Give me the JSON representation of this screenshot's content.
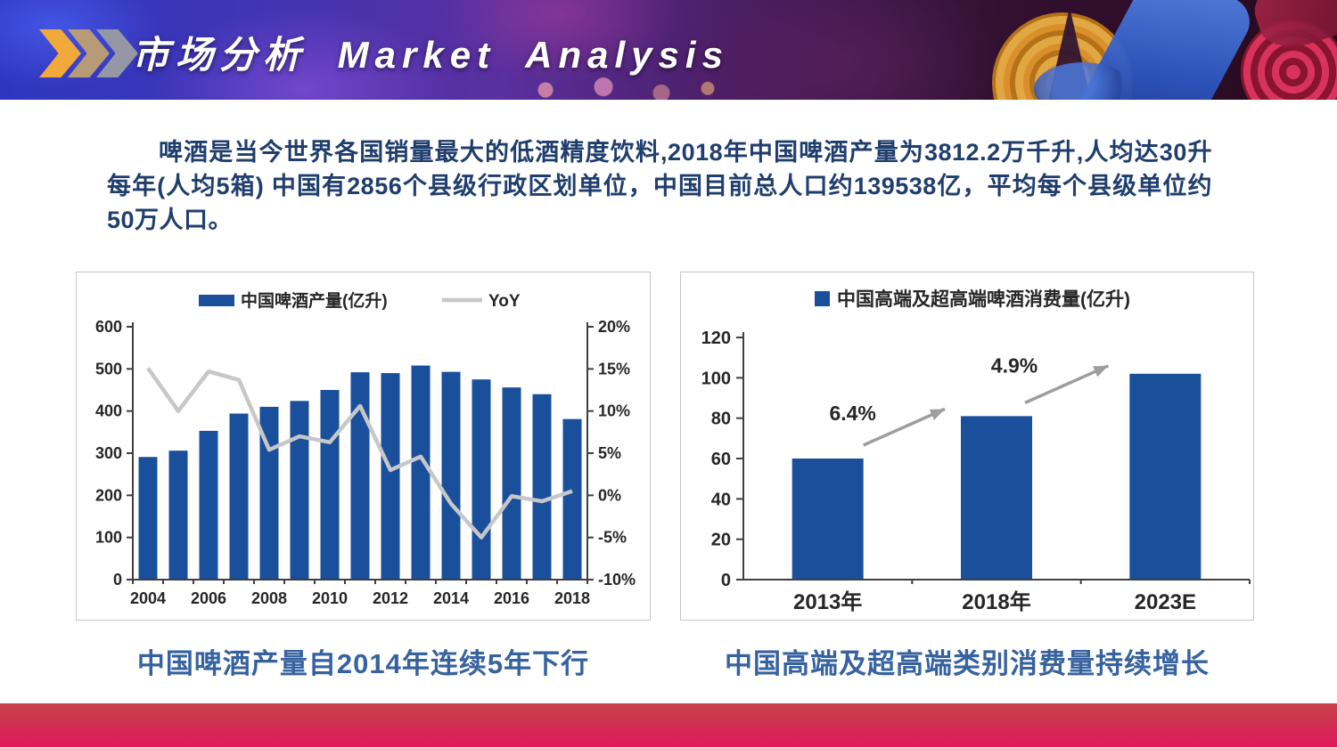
{
  "slide": {
    "header": {
      "title": "市场分析 Market Analysis",
      "chevron_icon_colors": [
        "#F2A93B",
        "#B79B76",
        "#9597A5"
      ]
    },
    "intro_paragraph": "啤酒是当今世界各国销量最大的低酒精度饮料,2018年中国啤酒产量为3812.2万千升,人均达30升每年(人均5箱) 中国有2856个县级行政区划单位，中国目前总人口约139538亿，平均每个县级单位约50万人口。",
    "captions": {
      "left": "中国啤酒产量自2014年连续5年下行",
      "right": "中国高端及超高端类别消费量持续增长"
    },
    "colors": {
      "bar_blue": "#1A4F9C",
      "line_gray": "#C7C7C7",
      "arrow_gray": "#9E9E9E",
      "axis_line": "#3F3F3F",
      "axis_text": "#262626",
      "caption_blue": "#36629F",
      "body_text_navy": "#1F3E6E",
      "band_red_top": "#C8414B",
      "band_red_bottom": "#E3195D"
    }
  },
  "chart_data": [
    {
      "type": "bar",
      "subtype": "bar+line-combo",
      "x": [
        "2004",
        "2005",
        "2006",
        "2007",
        "2008",
        "2009",
        "2010",
        "2011",
        "2012",
        "2013",
        "2014",
        "2015",
        "2016",
        "2017",
        "2018"
      ],
      "x_tick_labels": [
        "2004",
        "2006",
        "2008",
        "2010",
        "2012",
        "2014",
        "2016",
        "2018"
      ],
      "series": [
        {
          "name": "中国啤酒产量(亿升)",
          "type": "bar",
          "axis": "left",
          "values": [
            291,
            306,
            353,
            394,
            410,
            424,
            450,
            492,
            490,
            508,
            493,
            475,
            456,
            440,
            381
          ]
        },
        {
          "name": "YoY",
          "type": "line",
          "axis": "right",
          "values": [
            15.1,
            10.0,
            14.7,
            13.7,
            5.4,
            7.0,
            6.3,
            10.6,
            3.0,
            4.6,
            -1.0,
            -5.0,
            -0.1,
            -0.7,
            0.5
          ]
        }
      ],
      "left_axis": {
        "min": 0,
        "max": 600,
        "step": 100,
        "tick_labels": [
          "600",
          "500",
          "400",
          "300",
          "200",
          "100",
          "0"
        ]
      },
      "right_axis": {
        "min": -10,
        "max": 20,
        "step": 5,
        "tick_labels": [
          "20%",
          "15%",
          "10%",
          "5%",
          "0%",
          "-5%",
          "-10%"
        ]
      },
      "legend_position": "top",
      "grid": false
    },
    {
      "type": "bar",
      "legend": "中国高端及超高端啤酒消费量(亿升)",
      "categories": [
        "2013年",
        "2018年",
        "2023E"
      ],
      "values": [
        60,
        81,
        102
      ],
      "ylim": [
        0,
        120
      ],
      "y_tick_labels": [
        "120",
        "100",
        "80",
        "60",
        "40",
        "20",
        "0"
      ],
      "annotations": [
        {
          "label": "6.4%",
          "between": [
            "2013年",
            "2018年"
          ]
        },
        {
          "label": "4.9%",
          "between": [
            "2018年",
            "2023E"
          ]
        }
      ],
      "legend_position": "top",
      "grid": false
    }
  ]
}
